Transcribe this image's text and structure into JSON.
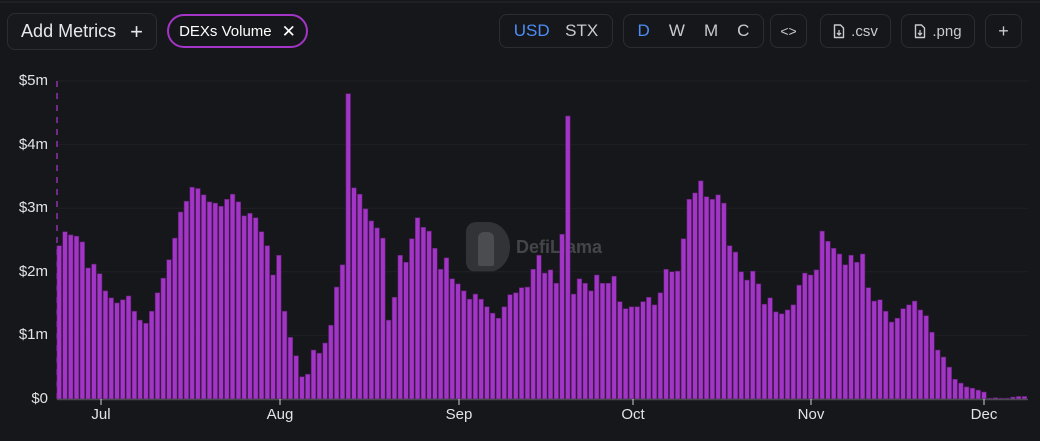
{
  "toolbar": {
    "add_metrics_label": "Add Metrics",
    "add_metrics_icon": "plus-icon",
    "active_metric_chip": "DEXs Volume",
    "chip_close_icon": "close-icon",
    "currency_options": [
      "USD",
      "STX"
    ],
    "currency_selected": "USD",
    "period_options": [
      "D",
      "W",
      "M",
      "C"
    ],
    "period_selected": "D",
    "embed_icon": "code-icon",
    "csv_label": ".csv",
    "csv_icon": "file-download-icon",
    "png_label": ".png",
    "png_icon": "file-download-icon",
    "add_chart_icon": "plus-icon"
  },
  "watermark": "DefiLlama",
  "colors": {
    "background": "#16171a",
    "bar": "#a335c6",
    "accent": "#4c8ef6",
    "chip_border": "#a335c6"
  },
  "chart_data": {
    "type": "bar",
    "title": "DEXs Volume",
    "xlabel": "",
    "ylabel": "",
    "unit": "USD (millions)",
    "ylim": [
      0,
      5
    ],
    "y_ticks": [
      "$0",
      "$1m",
      "$2m",
      "$3m",
      "$4m",
      "$5m"
    ],
    "x_ticks": [
      "Jul",
      "Aug",
      "Sep",
      "Oct",
      "Nov",
      "Dec"
    ],
    "grid": true,
    "legend": "none",
    "x_start": "Jun 24",
    "granularity": "daily",
    "series": [
      {
        "name": "DEXs Volume",
        "color": "#a335c6",
        "values": [
          2.41,
          2.63,
          2.58,
          2.56,
          2.47,
          2.06,
          2.12,
          1.97,
          1.7,
          1.59,
          1.51,
          1.56,
          1.62,
          1.38,
          1.24,
          1.19,
          1.38,
          1.67,
          1.9,
          2.19,
          2.53,
          2.94,
          3.11,
          3.33,
          3.31,
          3.21,
          3.1,
          3.08,
          3.03,
          3.14,
          3.22,
          3.1,
          2.88,
          2.92,
          2.85,
          2.63,
          2.41,
          1.95,
          2.26,
          1.38,
          0.97,
          0.68,
          0.35,
          0.39,
          0.77,
          0.72,
          0.88,
          1.16,
          1.76,
          2.11,
          4.8,
          3.32,
          3.22,
          2.99,
          2.8,
          2.69,
          2.53,
          1.24,
          1.6,
          2.26,
          2.15,
          2.52,
          2.85,
          2.7,
          2.64,
          2.37,
          2.04,
          2.22,
          1.89,
          1.81,
          1.7,
          1.57,
          1.65,
          1.57,
          1.45,
          1.35,
          1.27,
          1.45,
          1.64,
          1.67,
          1.75,
          1.76,
          2.04,
          2.26,
          1.98,
          2.03,
          1.82,
          2.59,
          4.45,
          1.65,
          1.89,
          1.82,
          1.7,
          1.95,
          1.82,
          1.82,
          1.93,
          1.53,
          1.42,
          1.45,
          1.45,
          1.53,
          1.6,
          1.48,
          1.67,
          2.04,
          2.0,
          2.01,
          2.52,
          3.14,
          3.24,
          3.43,
          3.18,
          3.14,
          3.21,
          3.08,
          2.41,
          2.31,
          2.0,
          1.87,
          2.01,
          1.81,
          1.49,
          1.59,
          1.37,
          1.34,
          1.4,
          1.48,
          1.79,
          1.98,
          1.95,
          2.03,
          2.64,
          2.48,
          2.37,
          2.28,
          2.11,
          2.26,
          2.15,
          2.28,
          1.75,
          1.54,
          1.56,
          1.38,
          1.21,
          1.27,
          1.42,
          1.48,
          1.54,
          1.4,
          1.31,
          1.05,
          0.77,
          0.66,
          0.5,
          0.31,
          0.25,
          0.19,
          0.17,
          0.14,
          0.11,
          0.01,
          0.02,
          0.01,
          0.01,
          0.03,
          0.04,
          0.04
        ]
      }
    ]
  }
}
